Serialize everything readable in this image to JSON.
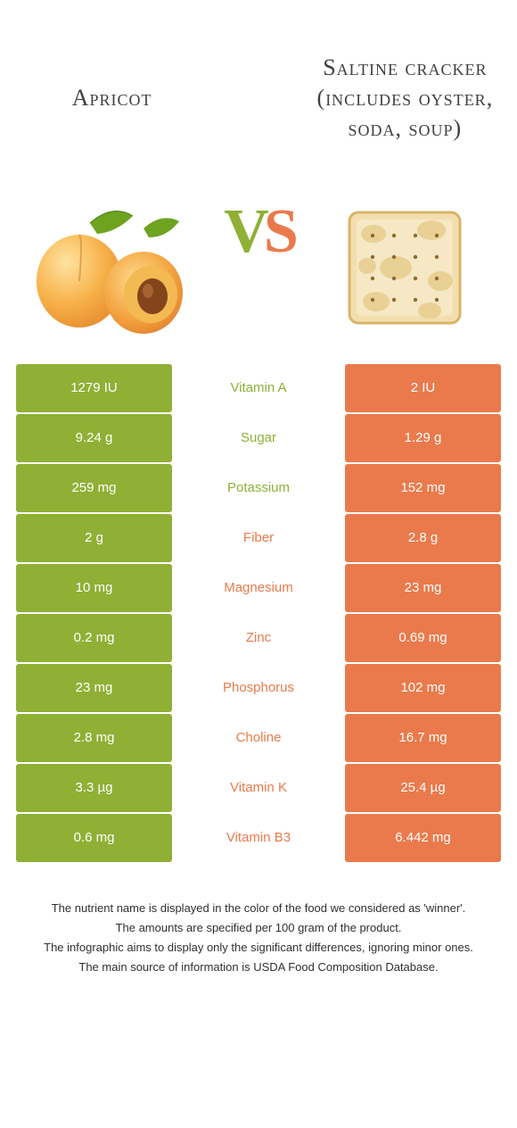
{
  "colors": {
    "left_food": "#8fb035",
    "right_food": "#ea7a4c",
    "mid_bg": "#ffffff",
    "text_dark": "#353535"
  },
  "left": {
    "title": "Apricot"
  },
  "right": {
    "title": "Saltine cracker (includes oyster, soda, soup)"
  },
  "vs": {
    "v": "V",
    "s": "S"
  },
  "table": {
    "rows": [
      {
        "nutrient": "Vitamin A",
        "left": "1279 IU",
        "right": "2 IU",
        "winner": "left"
      },
      {
        "nutrient": "Sugar",
        "left": "9.24 g",
        "right": "1.29 g",
        "winner": "left"
      },
      {
        "nutrient": "Potassium",
        "left": "259 mg",
        "right": "152 mg",
        "winner": "left"
      },
      {
        "nutrient": "Fiber",
        "left": "2 g",
        "right": "2.8 g",
        "winner": "right"
      },
      {
        "nutrient": "Magnesium",
        "left": "10 mg",
        "right": "23 mg",
        "winner": "right"
      },
      {
        "nutrient": "Zinc",
        "left": "0.2 mg",
        "right": "0.69 mg",
        "winner": "right"
      },
      {
        "nutrient": "Phosphorus",
        "left": "23 mg",
        "right": "102 mg",
        "winner": "right"
      },
      {
        "nutrient": "Choline",
        "left": "2.8 mg",
        "right": "16.7 mg",
        "winner": "right"
      },
      {
        "nutrient": "Vitamin K",
        "left": "3.3 µg",
        "right": "25.4 µg",
        "winner": "right"
      },
      {
        "nutrient": "Vitamin B3",
        "left": "0.6 mg",
        "right": "6.442 mg",
        "winner": "right"
      }
    ]
  },
  "footer": {
    "l1": "The nutrient name is displayed in the color of the food we considered as 'winner'.",
    "l2": "The amounts are specified per 100 gram of the product.",
    "l3": "The infographic aims to display only the significant differences, ignoring minor ones.",
    "l4": "The main source of information is USDA Food Composition Database."
  }
}
